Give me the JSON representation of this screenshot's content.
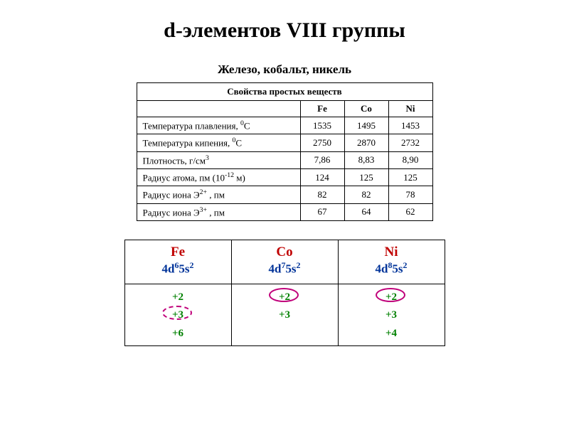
{
  "title": "d-элементов VIII группы",
  "subtitle": "Железо, кобальт, никель",
  "props_table": {
    "header": "Свойства простых веществ",
    "columns": [
      "Fe",
      "Co",
      "Ni"
    ],
    "rows": [
      {
        "label_html": "Температура плавления, <sup>0</sup>С",
        "vals": [
          "1535",
          "1495",
          "1453"
        ]
      },
      {
        "label_html": "Температура кипения, <sup>0</sup>С",
        "vals": [
          "2750",
          "2870",
          "2732"
        ]
      },
      {
        "label_html": "Плотность, г/см<sup>3</sup>",
        "vals": [
          "7,86",
          "8,83",
          "8,90"
        ]
      },
      {
        "label_html": "Радиус атома, пм (10<sup>-12</sup> м)",
        "vals": [
          "124",
          "125",
          "125"
        ]
      },
      {
        "label_html": "Радиус иона Э<sup>2+</sup> , пм",
        "vals": [
          "82",
          "82",
          "78"
        ]
      },
      {
        "label_html": "Радиус иона Э<sup>3+</sup> , пм",
        "vals": [
          "67",
          "64",
          "62"
        ]
      }
    ]
  },
  "config_table": {
    "elements": [
      {
        "symbol": "Fe",
        "config_html": "4d<sup>6</sup>5s<sup>2</sup>",
        "ox_states": [
          "+2",
          "+3",
          "+6"
        ],
        "highlight_idx": 1,
        "highlight_style": "dashed"
      },
      {
        "symbol": "Co",
        "config_html": "4d<sup>7</sup>5s<sup>2</sup>",
        "ox_states": [
          "+2",
          "+3"
        ],
        "highlight_idx": 0,
        "highlight_style": "solid"
      },
      {
        "symbol": "Ni",
        "config_html": "4d<sup>8</sup>5s<sup>2</sup>",
        "ox_states": [
          "+2",
          "+3",
          "+4"
        ],
        "highlight_idx": 0,
        "highlight_style": "solid"
      }
    ]
  },
  "colors": {
    "element_symbol": "#c00000",
    "config": "#003399",
    "oxidation": "#008000",
    "highlight_oval": "#c0007a",
    "text": "#000000",
    "background": "#ffffff"
  }
}
